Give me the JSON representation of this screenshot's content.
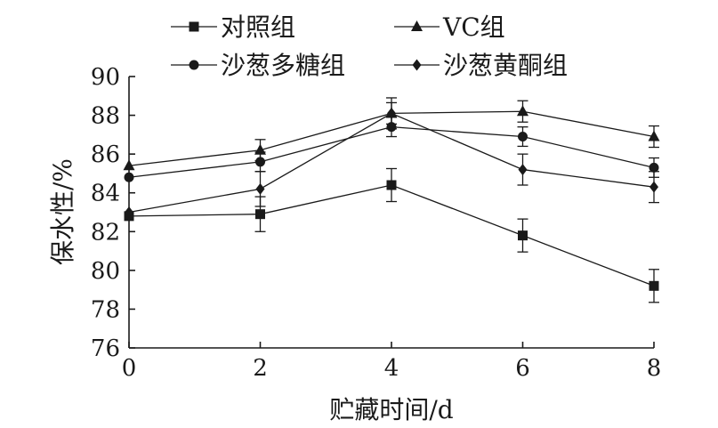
{
  "chart_data": {
    "type": "line",
    "title": "",
    "xlabel": "贮藏时间/d",
    "ylabel": "保水性/%",
    "x": [
      0,
      2,
      4,
      6,
      8
    ],
    "xlim": [
      0,
      8
    ],
    "ylim": [
      76,
      90
    ],
    "xticks": [
      "0",
      "2",
      "4",
      "6",
      "8"
    ],
    "yticks": [
      "76",
      "78",
      "80",
      "82",
      "84",
      "86",
      "88",
      "90"
    ],
    "grid": false,
    "legend_position": "top",
    "series": [
      {
        "name": "对照组",
        "marker": "square",
        "values": [
          82.8,
          82.9,
          84.4,
          81.8,
          79.2
        ],
        "errors": [
          0.0,
          0.9,
          0.85,
          0.85,
          0.85
        ]
      },
      {
        "name": "VC组",
        "marker": "triangle",
        "values": [
          85.4,
          86.2,
          88.1,
          88.2,
          86.9
        ],
        "errors": [
          0.0,
          0.55,
          0.55,
          0.55,
          0.55
        ]
      },
      {
        "name": "沙葱多糖组",
        "marker": "circle",
        "values": [
          84.8,
          85.6,
          87.4,
          86.9,
          85.3
        ],
        "errors": [
          0.0,
          0.5,
          0.5,
          0.5,
          0.5
        ]
      },
      {
        "name": "沙葱黄酮组",
        "marker": "diamond",
        "values": [
          83.0,
          84.2,
          88.1,
          85.2,
          84.3
        ],
        "errors": [
          0.0,
          0.9,
          0.8,
          0.8,
          0.8
        ]
      }
    ],
    "colors": {
      "ink": "#1a1a1a"
    }
  }
}
